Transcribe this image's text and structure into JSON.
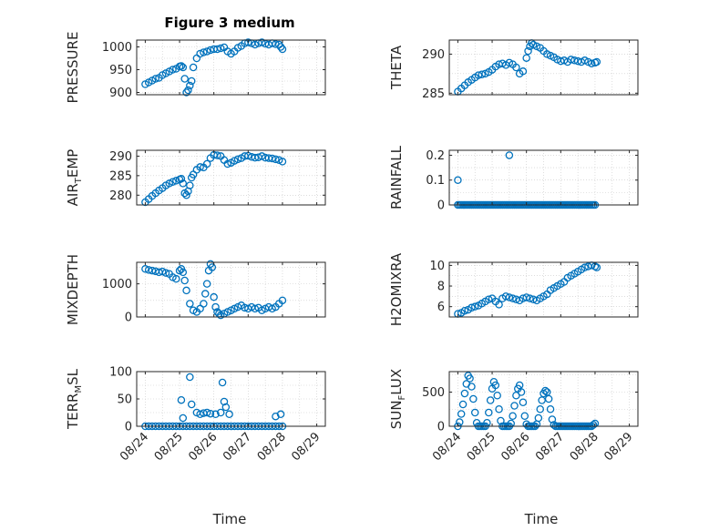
{
  "figure": {
    "title": "Figure 3 medium",
    "xlabel": "Time"
  },
  "colors": {
    "marker": "#0072BD",
    "axis": "#262626",
    "grid": "#c8c8c8"
  },
  "x_ticks": [
    "08/24",
    "08/25",
    "08/26",
    "08/27",
    "08/28",
    "08/29"
  ],
  "chart_data": [
    {
      "type": "scatter",
      "ylabel": "PRESSURE",
      "ylim": [
        895,
        1015
      ],
      "yticks": [
        900,
        950,
        1000
      ],
      "grid": true,
      "x_day": [
        0.0,
        0.1,
        0.2,
        0.3,
        0.4,
        0.5,
        0.6,
        0.7,
        0.8,
        0.9,
        1.0,
        1.05,
        1.1,
        1.15,
        1.2,
        1.25,
        1.3,
        1.35,
        1.4,
        1.5,
        1.6,
        1.7,
        1.8,
        1.9,
        2.0,
        2.1,
        2.2,
        2.3,
        2.4,
        2.5,
        2.6,
        2.7,
        2.8,
        2.9,
        3.0,
        3.1,
        3.2,
        3.3,
        3.4,
        3.5,
        3.6,
        3.7,
        3.8,
        3.9,
        3.95,
        4.0
      ],
      "y": [
        918,
        922,
        926,
        930,
        932,
        938,
        942,
        946,
        950,
        952,
        957,
        958,
        955,
        930,
        900,
        905,
        915,
        925,
        955,
        975,
        985,
        988,
        990,
        993,
        995,
        995,
        997,
        999,
        990,
        985,
        990,
        998,
        1002,
        1008,
        1010,
        1008,
        1005,
        1008,
        1010,
        1007,
        1005,
        1008,
        1006,
        1005,
        1000,
        995
      ]
    },
    {
      "type": "scatter",
      "ylabel": "THETA",
      "ylim": [
        284.8,
        291.8
      ],
      "yticks": [
        285,
        290
      ],
      "grid": true,
      "x_day": [
        0.0,
        0.1,
        0.2,
        0.3,
        0.4,
        0.5,
        0.6,
        0.7,
        0.8,
        0.9,
        1.0,
        1.1,
        1.2,
        1.3,
        1.4,
        1.5,
        1.6,
        1.7,
        1.8,
        1.9,
        2.0,
        2.05,
        2.1,
        2.15,
        2.2,
        2.3,
        2.4,
        2.5,
        2.6,
        2.7,
        2.8,
        2.9,
        3.0,
        3.1,
        3.2,
        3.3,
        3.4,
        3.5,
        3.6,
        3.7,
        3.8,
        3.9,
        4.0,
        4.05
      ],
      "y": [
        285.2,
        285.6,
        286.0,
        286.4,
        286.7,
        287.0,
        287.3,
        287.4,
        287.5,
        287.7,
        288.0,
        288.4,
        288.7,
        288.8,
        288.6,
        288.9,
        288.7,
        288.3,
        287.5,
        287.8,
        289.5,
        290.4,
        291.0,
        291.4,
        291.2,
        291.0,
        290.8,
        290.4,
        290.0,
        289.8,
        289.6,
        289.3,
        289.1,
        289.2,
        289.0,
        289.3,
        289.2,
        289.1,
        289.0,
        289.2,
        289.0,
        288.8,
        288.9,
        289.0
      ]
    },
    {
      "type": "scatter",
      "ylabel": "AIR_TEMP",
      "ylim": [
        277.5,
        291.5
      ],
      "yticks": [
        280,
        285,
        290
      ],
      "grid": true,
      "x_day": [
        0.0,
        0.1,
        0.2,
        0.3,
        0.4,
        0.5,
        0.6,
        0.7,
        0.8,
        0.9,
        1.0,
        1.05,
        1.1,
        1.15,
        1.2,
        1.25,
        1.3,
        1.35,
        1.4,
        1.5,
        1.6,
        1.7,
        1.8,
        1.9,
        2.0,
        2.1,
        2.2,
        2.3,
        2.4,
        2.5,
        2.6,
        2.7,
        2.8,
        2.9,
        3.0,
        3.1,
        3.2,
        3.3,
        3.4,
        3.5,
        3.6,
        3.7,
        3.8,
        3.9,
        4.0
      ],
      "y": [
        278.2,
        279.0,
        279.8,
        280.5,
        281.2,
        281.8,
        282.5,
        283.0,
        283.4,
        283.7,
        284.0,
        284.2,
        283.0,
        280.5,
        280.0,
        281.0,
        282.5,
        284.5,
        285.3,
        286.5,
        287.2,
        287.1,
        288.0,
        289.5,
        290.3,
        290.2,
        290.0,
        289.0,
        288.0,
        288.3,
        288.8,
        289.2,
        289.5,
        290.0,
        290.1,
        289.8,
        289.6,
        289.7,
        290.0,
        289.6,
        289.5,
        289.4,
        289.2,
        289.0,
        288.6
      ]
    },
    {
      "type": "scatter",
      "ylabel": "RAINFALL",
      "ylim": [
        0,
        0.22
      ],
      "yticks": [
        0,
        0.1,
        0.2
      ],
      "grid": true,
      "x_day": [
        0.0,
        0.05,
        0.1,
        0.15,
        0.2,
        0.25,
        0.3,
        0.35,
        0.4,
        0.45,
        0.5,
        0.55,
        0.6,
        0.65,
        0.7,
        0.75,
        0.8,
        0.85,
        0.9,
        0.95,
        1.0,
        1.05,
        1.1,
        1.15,
        1.2,
        1.25,
        1.3,
        1.35,
        1.4,
        1.45,
        1.5,
        1.55,
        1.6,
        1.65,
        1.7,
        1.75,
        1.8,
        1.85,
        1.9,
        1.95,
        2.0,
        2.05,
        2.1,
        2.15,
        2.2,
        2.25,
        2.3,
        2.35,
        2.4,
        2.45,
        2.5,
        2.55,
        2.6,
        2.65,
        2.7,
        2.75,
        2.8,
        2.85,
        2.9,
        2.95,
        3.0,
        3.05,
        3.1,
        3.15,
        3.2,
        3.25,
        3.3,
        3.35,
        3.4,
        3.45,
        3.5,
        3.55,
        3.6,
        3.65,
        3.7,
        3.75,
        3.8,
        3.85,
        3.9,
        3.95,
        4.0,
        0.0,
        1.5
      ],
      "y": [
        0,
        0,
        0,
        0,
        0,
        0,
        0,
        0,
        0,
        0,
        0,
        0,
        0,
        0,
        0,
        0,
        0,
        0,
        0,
        0,
        0,
        0,
        0,
        0,
        0,
        0,
        0,
        0,
        0,
        0,
        0,
        0,
        0,
        0,
        0,
        0,
        0,
        0,
        0,
        0,
        0,
        0,
        0,
        0,
        0,
        0,
        0,
        0,
        0,
        0,
        0,
        0,
        0,
        0,
        0,
        0,
        0,
        0,
        0,
        0,
        0,
        0,
        0,
        0,
        0,
        0,
        0,
        0,
        0,
        0,
        0,
        0,
        0,
        0,
        0,
        0,
        0,
        0,
        0,
        0,
        0,
        0.1,
        0.2
      ]
    },
    {
      "type": "scatter",
      "ylabel": "MIXDEPTH",
      "ylim": [
        0,
        1650
      ],
      "yticks": [
        0,
        1000
      ],
      "grid": true,
      "x_day": [
        0.0,
        0.1,
        0.2,
        0.3,
        0.4,
        0.5,
        0.6,
        0.7,
        0.8,
        0.9,
        1.0,
        1.05,
        1.1,
        1.15,
        1.2,
        1.3,
        1.4,
        1.5,
        1.6,
        1.7,
        1.75,
        1.8,
        1.85,
        1.9,
        1.95,
        2.0,
        2.05,
        2.1,
        2.15,
        2.2,
        2.3,
        2.4,
        2.5,
        2.6,
        2.7,
        2.8,
        2.9,
        3.0,
        3.1,
        3.2,
        3.3,
        3.4,
        3.5,
        3.6,
        3.7,
        3.8,
        3.9,
        4.0
      ],
      "y": [
        1450,
        1420,
        1400,
        1380,
        1350,
        1370,
        1330,
        1300,
        1200,
        1150,
        1400,
        1450,
        1350,
        1100,
        800,
        400,
        200,
        150,
        250,
        400,
        700,
        1000,
        1400,
        1600,
        1500,
        600,
        300,
        150,
        100,
        50,
        100,
        150,
        200,
        250,
        300,
        350,
        280,
        250,
        300,
        250,
        280,
        200,
        250,
        300,
        250,
        300,
        400,
        500
      ]
    },
    {
      "type": "scatter",
      "ylabel": "H2OMIXRA",
      "ylim": [
        5,
        10.3
      ],
      "yticks": [
        6,
        8,
        10
      ],
      "grid": true,
      "x_day": [
        0.0,
        0.1,
        0.2,
        0.3,
        0.4,
        0.5,
        0.6,
        0.7,
        0.8,
        0.9,
        1.0,
        1.1,
        1.2,
        1.3,
        1.4,
        1.5,
        1.6,
        1.7,
        1.8,
        1.9,
        2.0,
        2.1,
        2.2,
        2.3,
        2.4,
        2.5,
        2.6,
        2.7,
        2.8,
        2.9,
        3.0,
        3.1,
        3.2,
        3.3,
        3.4,
        3.5,
        3.6,
        3.7,
        3.8,
        3.9,
        4.0,
        4.05
      ],
      "y": [
        5.3,
        5.4,
        5.6,
        5.7,
        5.9,
        6.0,
        6.1,
        6.3,
        6.5,
        6.7,
        6.8,
        6.5,
        6.2,
        6.8,
        7.0,
        6.9,
        6.8,
        6.7,
        6.6,
        6.8,
        6.9,
        6.8,
        6.7,
        6.6,
        6.8,
        7.0,
        7.2,
        7.6,
        7.8,
        8.0,
        8.2,
        8.4,
        8.8,
        9.0,
        9.2,
        9.4,
        9.6,
        9.8,
        9.9,
        10.0,
        9.9,
        9.8
      ]
    },
    {
      "type": "scatter",
      "ylabel": "TERR_MSL",
      "ylim": [
        0,
        100
      ],
      "yticks": [
        0,
        50,
        100
      ],
      "grid": true,
      "x_day": [
        0.0,
        0.1,
        0.2,
        0.3,
        0.4,
        0.5,
        0.6,
        0.7,
        0.8,
        0.9,
        1.0,
        1.1,
        1.2,
        1.3,
        1.4,
        1.5,
        1.6,
        1.7,
        1.8,
        1.9,
        2.0,
        2.1,
        2.2,
        2.3,
        2.4,
        2.5,
        2.6,
        2.7,
        2.8,
        2.9,
        3.0,
        3.1,
        3.2,
        3.3,
        3.4,
        3.5,
        3.6,
        3.7,
        3.8,
        3.9,
        4.0,
        1.05,
        1.1,
        1.3,
        1.35,
        1.5,
        1.6,
        1.7,
        1.8,
        1.9,
        2.05,
        2.2,
        2.25,
        2.3,
        2.35,
        2.45,
        3.8,
        3.95
      ],
      "y": [
        0,
        0,
        0,
        0,
        0,
        0,
        0,
        0,
        0,
        0,
        0,
        0,
        0,
        0,
        0,
        0,
        0,
        0,
        0,
        0,
        0,
        0,
        0,
        0,
        0,
        0,
        0,
        0,
        0,
        0,
        0,
        0,
        0,
        0,
        0,
        0,
        0,
        0,
        0,
        0,
        0,
        48,
        15,
        90,
        40,
        25,
        22,
        24,
        25,
        23,
        22,
        25,
        80,
        45,
        35,
        22,
        18,
        22
      ]
    },
    {
      "type": "scatter",
      "ylabel": "SUN_FLUX",
      "ylim": [
        0,
        800
      ],
      "yticks": [
        0,
        500
      ],
      "grid": true,
      "x_day": [
        0.0,
        0.05,
        0.1,
        0.15,
        0.2,
        0.25,
        0.3,
        0.35,
        0.4,
        0.45,
        0.5,
        0.55,
        0.6,
        0.65,
        0.7,
        0.75,
        0.8,
        0.85,
        0.9,
        0.95,
        1.0,
        1.05,
        1.1,
        1.15,
        1.2,
        1.25,
        1.3,
        1.35,
        1.4,
        1.45,
        1.5,
        1.55,
        1.6,
        1.65,
        1.7,
        1.75,
        1.8,
        1.85,
        1.9,
        1.95,
        2.0,
        2.05,
        2.1,
        2.15,
        2.2,
        2.25,
        2.3,
        2.35,
        2.4,
        2.45,
        2.5,
        2.55,
        2.6,
        2.65,
        2.7,
        2.75,
        2.8,
        2.85,
        2.9,
        2.95,
        3.0,
        3.05,
        3.1,
        3.15,
        3.2,
        3.25,
        3.3,
        3.35,
        3.4,
        3.45,
        3.5,
        3.55,
        3.6,
        3.65,
        3.7,
        3.75,
        3.8,
        3.85,
        3.9,
        3.95,
        4.0
      ],
      "y": [
        0,
        60,
        180,
        320,
        480,
        620,
        740,
        700,
        580,
        400,
        200,
        50,
        0,
        0,
        0,
        0,
        0,
        50,
        200,
        380,
        550,
        650,
        600,
        450,
        250,
        80,
        0,
        0,
        0,
        0,
        0,
        40,
        150,
        300,
        450,
        550,
        600,
        500,
        350,
        150,
        30,
        0,
        0,
        0,
        0,
        0,
        30,
        120,
        250,
        380,
        480,
        520,
        500,
        400,
        250,
        100,
        20,
        0,
        0,
        0,
        0,
        0,
        0,
        0,
        0,
        0,
        0,
        0,
        0,
        0,
        0,
        0,
        0,
        0,
        0,
        0,
        0,
        0,
        0,
        20,
        40
      ]
    }
  ]
}
